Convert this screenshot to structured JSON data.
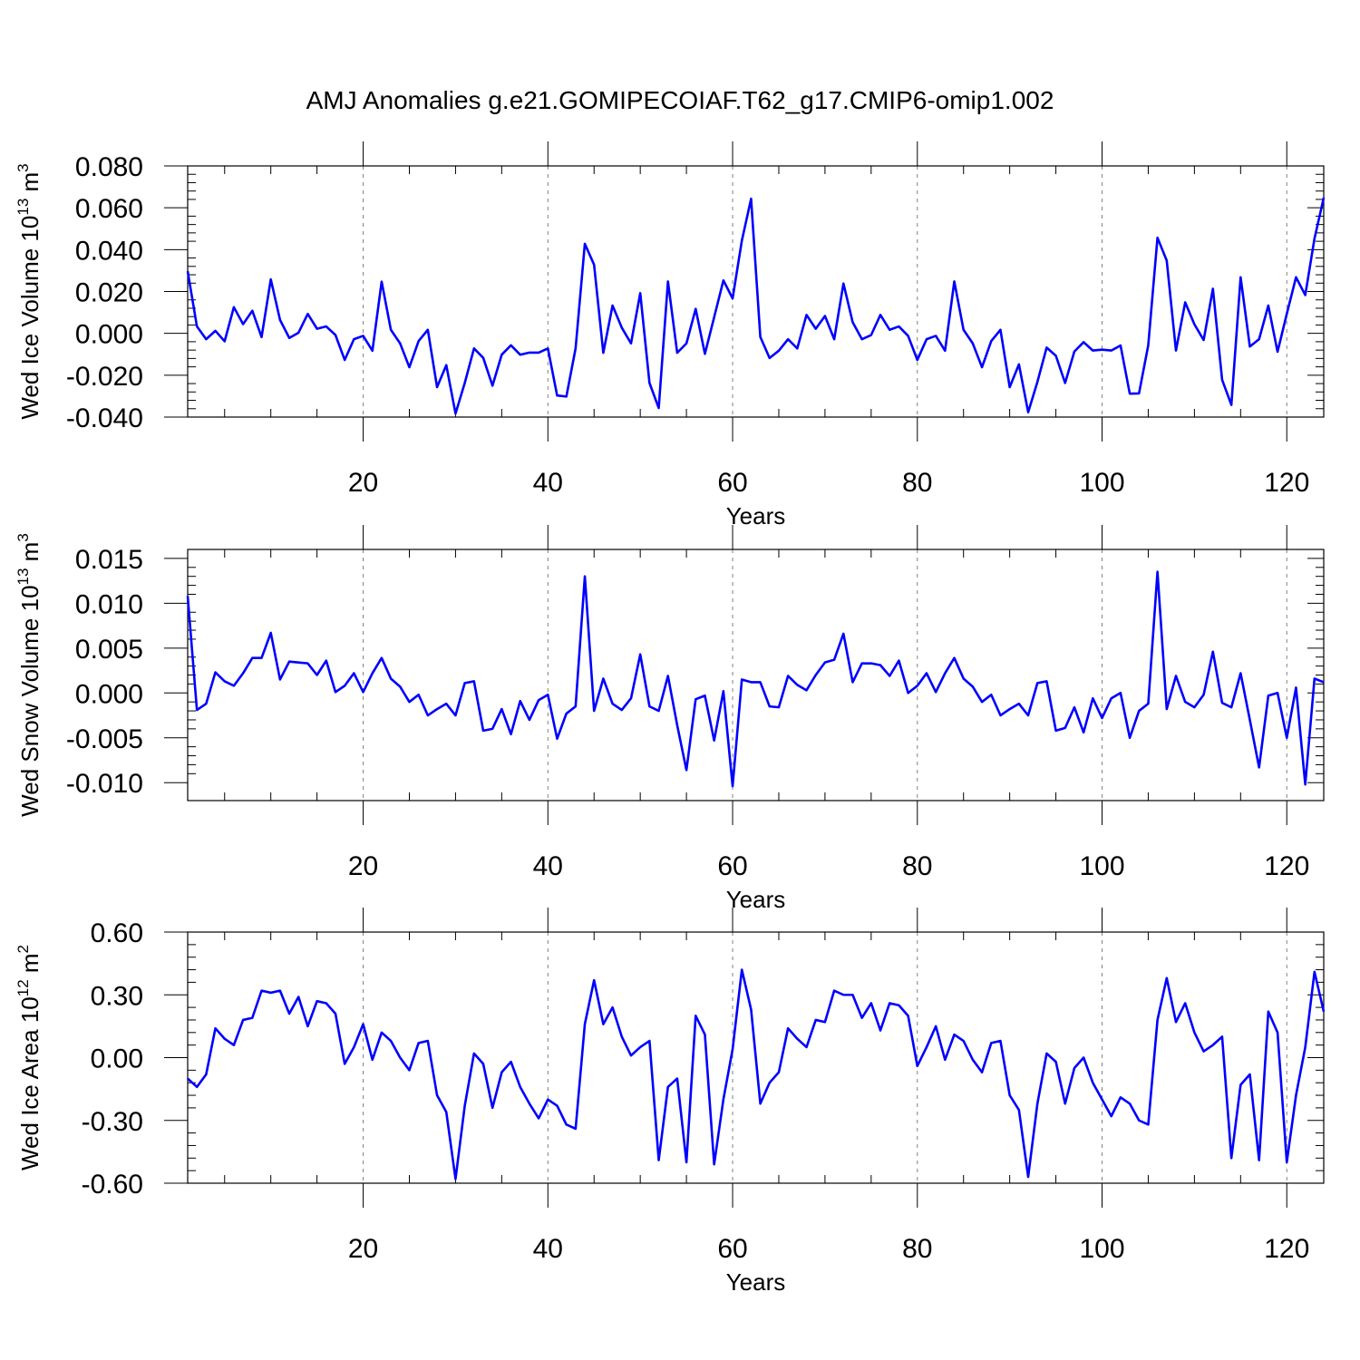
{
  "title": "AMJ Anomalies g.e21.GOMIPECOIAF.T62_g17.CMIP6-omip1.002",
  "colors": {
    "line": "#0000ff",
    "axis": "#000000",
    "grid": "#808080"
  },
  "chart_data": [
    {
      "type": "line",
      "ylabel_main": "Wed Ice Volume 10",
      "ylabel_exp": "13",
      "ylabel_unit": " m",
      "ylabel_unit_exp": "3",
      "xlabel": "Years",
      "xlim": [
        1,
        124
      ],
      "ylim": [
        -0.04,
        0.08
      ],
      "yticks": [
        -0.04,
        -0.02,
        0.0,
        0.02,
        0.04,
        0.06,
        0.08
      ],
      "ytick_labels": [
        "-0.040",
        "-0.020",
        "0.000",
        "0.020",
        "0.040",
        "0.060",
        "0.080"
      ],
      "xticks": [
        20,
        40,
        60,
        80,
        100,
        120
      ],
      "xtick_labels": [
        "20",
        "40",
        "60",
        "80",
        "100",
        "120"
      ],
      "grid": "vertical dashed",
      "series": [
        {
          "x_start": 1,
          "values": [
            0.0297,
            0.0033,
            -0.0028,
            0.0012,
            -0.0038,
            0.0125,
            0.0044,
            0.0108,
            -0.0018,
            0.0258,
            0.0064,
            -0.0022,
            0.0003,
            0.0093,
            0.0022,
            0.0033,
            -0.0008,
            -0.0127,
            -0.0028,
            -0.0012,
            -0.0083,
            0.0247,
            0.0017,
            -0.0048,
            -0.0162,
            -0.0037,
            0.0017,
            -0.0257,
            -0.0152,
            -0.0383,
            -0.0237,
            -0.0072,
            -0.0117,
            -0.025,
            -0.0102,
            -0.0057,
            -0.0102,
            -0.0092,
            -0.0092,
            -0.0072,
            -0.0297,
            -0.0302,
            -0.0072,
            0.0428,
            0.0328,
            -0.0093,
            0.0133,
            0.0027,
            -0.0048,
            0.0192,
            -0.0237,
            -0.0357,
            0.0248,
            -0.0093,
            -0.0048,
            0.0117,
            -0.0098,
            0.0077,
            0.0253,
            0.0167,
            0.0443,
            0.0643,
            -0.0017,
            -0.0118,
            -0.0083,
            -0.0028,
            -0.0072,
            0.0088,
            0.0022,
            0.0083,
            -0.0028,
            0.0238,
            0.0053,
            -0.0028,
            -0.0008,
            0.0088,
            0.0017,
            0.0033,
            -0.0012,
            -0.0127,
            -0.0028,
            -0.0012,
            -0.0083,
            0.0248,
            0.0017,
            -0.0048,
            -0.0162,
            -0.0037,
            0.0017,
            -0.0257,
            -0.0148,
            -0.0377,
            -0.0232,
            -0.0068,
            -0.0107,
            -0.0237,
            -0.0087,
            -0.0042,
            -0.0082,
            -0.0078,
            -0.0082,
            -0.0058,
            -0.0288,
            -0.0287,
            -0.0057,
            0.0457,
            0.0348,
            -0.0082,
            0.0148,
            0.0043,
            -0.0032,
            0.0213,
            -0.0222,
            -0.0342,
            0.0268,
            -0.0063,
            -0.0028,
            0.0133,
            -0.0088,
            0.0093,
            0.0268,
            0.0183,
            0.0453,
            0.0648
          ]
        }
      ]
    },
    {
      "type": "line",
      "ylabel_main": "Wed Snow Volume 10",
      "ylabel_exp": "13",
      "ylabel_unit": " m",
      "ylabel_unit_exp": "3",
      "xlabel": "Years",
      "xlim": [
        1,
        124
      ],
      "ylim": [
        -0.012,
        0.016
      ],
      "yticks": [
        -0.01,
        -0.005,
        0.0,
        0.005,
        0.01,
        0.015
      ],
      "ytick_labels": [
        "-0.010",
        "-0.005",
        "0.000",
        "0.005",
        "0.010",
        "0.015"
      ],
      "xticks": [
        20,
        40,
        60,
        80,
        100,
        120
      ],
      "xtick_labels": [
        "20",
        "40",
        "60",
        "80",
        "100",
        "120"
      ],
      "grid": "vertical dashed",
      "series": [
        {
          "x_start": 1,
          "values": [
            0.0108,
            -0.0019,
            -0.0012,
            0.0023,
            0.0013,
            0.0008,
            0.0022,
            0.0039,
            0.0039,
            0.0067,
            0.0015,
            0.0035,
            0.0034,
            0.0033,
            0.002,
            0.0036,
            0.0001,
            0.0008,
            0.0022,
            0.0001,
            0.0022,
            0.0039,
            0.0016,
            0.0007,
            -0.001,
            -0.0002,
            -0.0025,
            -0.0018,
            -0.0012,
            -0.0025,
            0.0011,
            0.0013,
            -0.0042,
            -0.004,
            -0.0018,
            -0.0046,
            -0.0009,
            -0.003,
            -0.0008,
            -0.0002,
            -0.0051,
            -0.0023,
            -0.0015,
            0.013,
            -0.002,
            0.0016,
            -0.0012,
            -0.0019,
            -0.0006,
            0.0043,
            -0.0015,
            -0.002,
            0.0019,
            -0.0036,
            -0.0086,
            -0.0007,
            -0.0003,
            -0.0053,
            0.0002,
            -0.0104,
            0.0015,
            0.0012,
            0.0012,
            -0.0015,
            -0.0016,
            0.0019,
            0.0009,
            0.0003,
            0.002,
            0.0034,
            0.0037,
            0.0066,
            0.0012,
            0.0033,
            0.0033,
            0.0031,
            0.0019,
            0.0036,
            0.0,
            0.0008,
            0.0022,
            0.0001,
            0.0022,
            0.0039,
            0.0016,
            0.0007,
            -0.001,
            -0.0002,
            -0.0025,
            -0.0018,
            -0.0012,
            -0.0025,
            0.0011,
            0.0013,
            -0.0042,
            -0.0039,
            -0.0016,
            -0.0044,
            -0.0006,
            -0.0028,
            -0.0006,
            0.0,
            -0.005,
            -0.002,
            -0.0012,
            0.0135,
            -0.0018,
            0.0019,
            -0.001,
            -0.0016,
            -0.0002,
            0.0046,
            -0.0011,
            -0.0016,
            0.0022,
            -0.003,
            -0.0083,
            -0.0003,
            0.0,
            -0.005,
            0.0006,
            -0.0102,
            0.0016,
            0.0012
          ]
        }
      ]
    },
    {
      "type": "line",
      "ylabel_main": "Wed Ice Area 10",
      "ylabel_exp": "12",
      "ylabel_unit": " m",
      "ylabel_unit_exp": "2",
      "xlabel": "Years",
      "xlim": [
        1,
        124
      ],
      "ylim": [
        -0.6,
        0.6
      ],
      "yticks": [
        -0.6,
        -0.3,
        0.0,
        0.3,
        0.6
      ],
      "ytick_labels": [
        "-0.60",
        "-0.30",
        "0.00",
        "0.30",
        "0.60"
      ],
      "xticks": [
        20,
        40,
        60,
        80,
        100,
        120
      ],
      "xtick_labels": [
        "20",
        "40",
        "60",
        "80",
        "100",
        "120"
      ],
      "grid": "vertical dashed",
      "series": [
        {
          "x_start": 1,
          "values": [
            -0.1,
            -0.14,
            -0.08,
            0.14,
            0.09,
            0.06,
            0.18,
            0.19,
            0.32,
            0.31,
            0.32,
            0.21,
            0.29,
            0.15,
            0.27,
            0.26,
            0.21,
            -0.03,
            0.05,
            0.16,
            -0.01,
            0.12,
            0.08,
            0.0,
            -0.06,
            0.07,
            0.08,
            -0.18,
            -0.26,
            -0.58,
            -0.23,
            0.02,
            -0.03,
            -0.24,
            -0.07,
            -0.02,
            -0.14,
            -0.22,
            -0.29,
            -0.2,
            -0.23,
            -0.32,
            -0.34,
            0.16,
            0.37,
            0.16,
            0.24,
            0.1,
            0.01,
            0.05,
            0.08,
            -0.49,
            -0.14,
            -0.1,
            -0.5,
            0.2,
            0.11,
            -0.51,
            -0.2,
            0.04,
            0.42,
            0.23,
            -0.22,
            -0.12,
            -0.07,
            0.14,
            0.09,
            0.05,
            0.18,
            0.17,
            0.32,
            0.3,
            0.3,
            0.19,
            0.26,
            0.13,
            0.26,
            0.25,
            0.2,
            -0.04,
            0.05,
            0.15,
            -0.01,
            0.11,
            0.08,
            -0.01,
            -0.07,
            0.07,
            0.08,
            -0.18,
            -0.25,
            -0.57,
            -0.22,
            0.02,
            -0.02,
            -0.22,
            -0.05,
            0.0,
            -0.12,
            -0.2,
            -0.28,
            -0.19,
            -0.22,
            -0.3,
            -0.32,
            0.18,
            0.38,
            0.17,
            0.26,
            0.12,
            0.03,
            0.06,
            0.1,
            -0.48,
            -0.13,
            -0.08,
            -0.49,
            0.22,
            0.12,
            -0.5,
            -0.18,
            0.05,
            0.41,
            0.22
          ]
        }
      ]
    }
  ]
}
